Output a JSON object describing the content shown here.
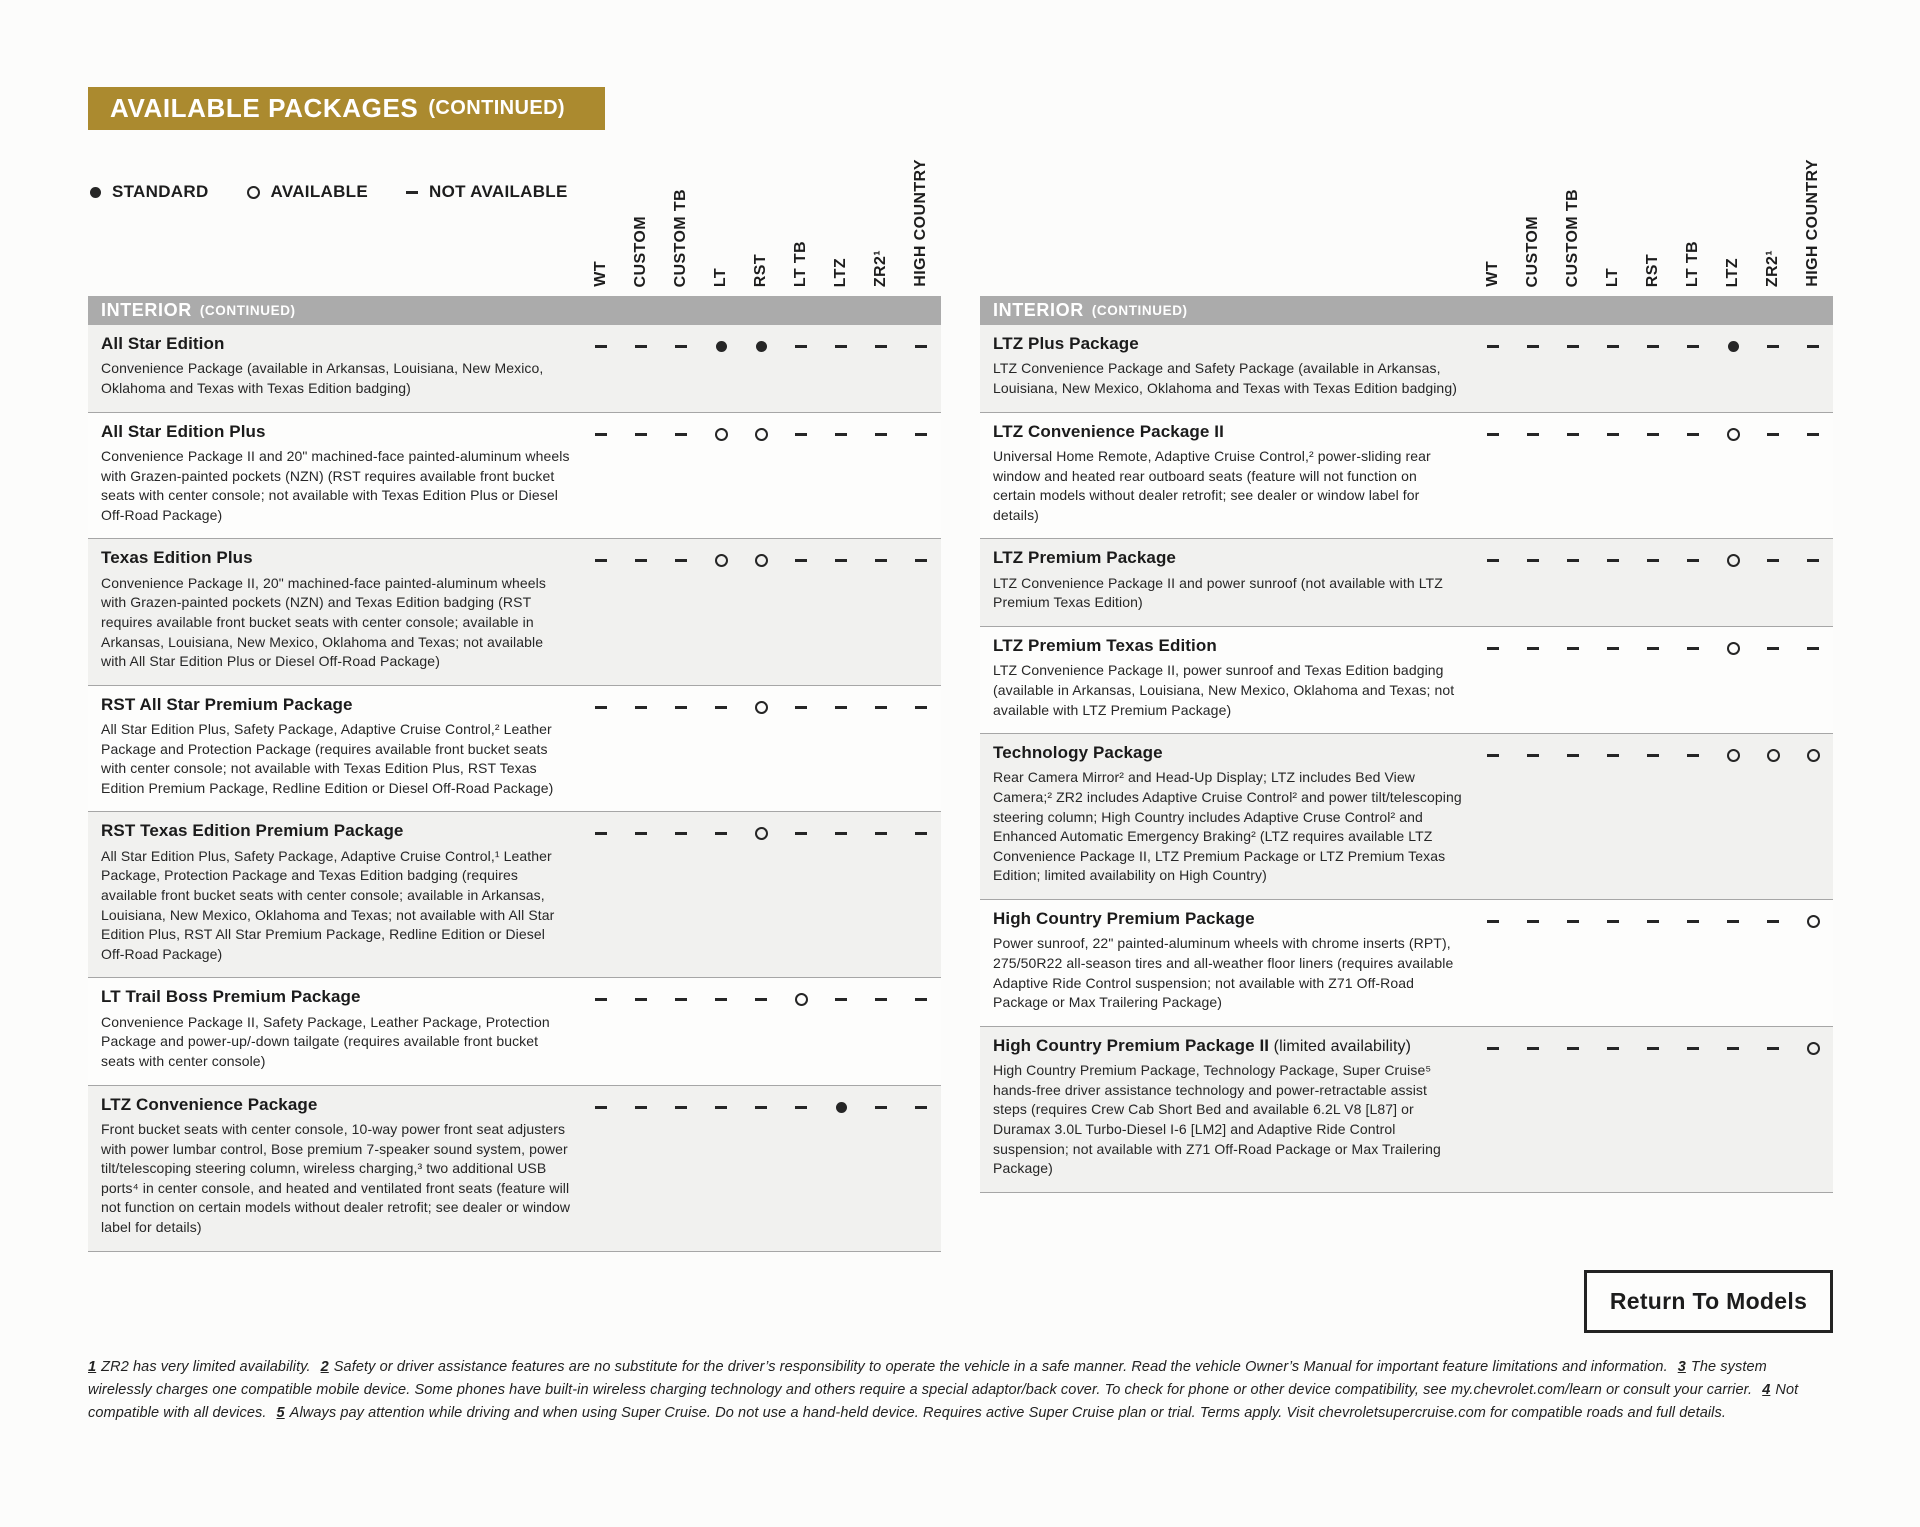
{
  "colors": {
    "accent": "#ab8a2f",
    "section_bar": "#ababab",
    "row_stripe": "#f1f1ef",
    "ink": "#262626"
  },
  "header": {
    "title": "AVAILABLE PACKAGES",
    "continued": "(CONTINUED)"
  },
  "legend": {
    "standard": "STANDARD",
    "available": "AVAILABLE",
    "not_available": "NOT AVAILABLE"
  },
  "columns": [
    "WT",
    "CUSTOM",
    "CUSTOM TB",
    "LT",
    "RST",
    "LT TB",
    "LTZ",
    "ZR2¹",
    "HIGH COUNTRY"
  ],
  "section": {
    "label": "INTERIOR",
    "suffix": "(CONTINUED)"
  },
  "symbol_key": {
    "std": "standard",
    "avl": "available",
    "na": "not available"
  },
  "tables": {
    "left": {
      "rows": [
        {
          "name": "All Star Edition",
          "desc": "Convenience Package (available in Arkansas, Louisiana, New Mexico, Oklahoma and Texas with Texas Edition badging)",
          "cells": [
            "na",
            "na",
            "na",
            "std",
            "std",
            "na",
            "na",
            "na",
            "na"
          ]
        },
        {
          "name": "All Star Edition Plus",
          "desc": "Convenience Package II and 20\" machined-face painted-aluminum wheels with Grazen-painted pockets (NZN) (RST requires available front bucket seats with center console; not available with Texas Edition Plus or Diesel Off-Road Package)",
          "cells": [
            "na",
            "na",
            "na",
            "avl",
            "avl",
            "na",
            "na",
            "na",
            "na"
          ]
        },
        {
          "name": "Texas Edition Plus",
          "desc": "Convenience Package II, 20\" machined-face painted-aluminum wheels with Grazen-painted pockets (NZN) and Texas Edition badging (RST requires available front bucket seats with center console; available in Arkansas, Louisiana, New Mexico, Oklahoma and Texas; not available with All Star Edition Plus or Diesel Off-Road Package)",
          "cells": [
            "na",
            "na",
            "na",
            "avl",
            "avl",
            "na",
            "na",
            "na",
            "na"
          ]
        },
        {
          "name": "RST All Star Premium Package",
          "desc": "All Star Edition Plus, Safety Package, Adaptive Cruise Control,² Leather Package and Protection Package (requires available front bucket seats with center console; not available with Texas Edition Plus, RST Texas Edition Premium Package, Redline Edition or Diesel Off-Road Package)",
          "cells": [
            "na",
            "na",
            "na",
            "na",
            "avl",
            "na",
            "na",
            "na",
            "na"
          ]
        },
        {
          "name": "RST Texas Edition Premium Package",
          "desc": "All Star Edition Plus, Safety Package, Adaptive Cruise Control,¹ Leather Package, Protection Package and Texas Edition badging (requires available front bucket seats with center console; available in Arkansas, Louisiana, New Mexico, Oklahoma and Texas; not available with All Star Edition Plus, RST All Star Premium Package, Redline Edition or Diesel Off-Road Package)",
          "cells": [
            "na",
            "na",
            "na",
            "na",
            "avl",
            "na",
            "na",
            "na",
            "na"
          ]
        },
        {
          "name": "LT Trail Boss Premium Package",
          "desc": "Convenience Package II, Safety Package, Leather Package, Protection Package and power-up/-down tailgate (requires available front bucket seats with center console)",
          "cells": [
            "na",
            "na",
            "na",
            "na",
            "na",
            "avl",
            "na",
            "na",
            "na"
          ]
        },
        {
          "name": "LTZ Convenience Package",
          "desc": "Front bucket seats with center console, 10-way power front seat adjusters with power lumbar control, Bose premium 7-speaker sound system, power tilt/telescoping steering column, wireless charging,³ two additional USB ports⁴ in center console, and heated and ventilated front seats (feature will not function on certain models without dealer retrofit; see dealer or window label for details)",
          "cells": [
            "na",
            "na",
            "na",
            "na",
            "na",
            "na",
            "std",
            "na",
            "na"
          ]
        }
      ]
    },
    "right": {
      "rows": [
        {
          "name": "LTZ Plus Package",
          "desc": "LTZ Convenience Package and Safety Package (available in Arkansas, Louisiana, New Mexico, Oklahoma and Texas with Texas Edition badging)",
          "cells": [
            "na",
            "na",
            "na",
            "na",
            "na",
            "na",
            "std",
            "na",
            "na"
          ]
        },
        {
          "name": "LTZ Convenience Package II",
          "desc": "Universal Home Remote, Adaptive Cruise Control,² power-sliding rear window and heated rear outboard seats (feature will not function on certain models without dealer retrofit; see dealer or window label for details)",
          "cells": [
            "na",
            "na",
            "na",
            "na",
            "na",
            "na",
            "avl",
            "na",
            "na"
          ]
        },
        {
          "name": "LTZ Premium Package",
          "desc": "LTZ Convenience Package II and power sunroof (not available with LTZ Premium Texas Edition)",
          "cells": [
            "na",
            "na",
            "na",
            "na",
            "na",
            "na",
            "avl",
            "na",
            "na"
          ]
        },
        {
          "name": "LTZ Premium Texas Edition",
          "desc": "LTZ Convenience Package II, power sunroof and Texas Edition badging (available in Arkansas, Louisiana, New Mexico, Oklahoma and Texas; not available with LTZ Premium Package)",
          "cells": [
            "na",
            "na",
            "na",
            "na",
            "na",
            "na",
            "avl",
            "na",
            "na"
          ]
        },
        {
          "name": "Technology Package",
          "desc": "Rear Camera Mirror² and Head-Up Display; LTZ includes Bed View Camera;² ZR2 includes Adaptive Cruise Control² and power tilt/telescoping steering column; High Country includes Adaptive Cruse Control² and Enhanced Automatic Emergency Braking² (LTZ requires available LTZ Convenience Package II, LTZ Premium Package or LTZ Premium Texas Edition; limited availability on High Country)",
          "cells": [
            "na",
            "na",
            "na",
            "na",
            "na",
            "na",
            "avl",
            "avl",
            "avl"
          ]
        },
        {
          "name": "High Country Premium Package",
          "desc": "Power sunroof, 22\" painted-aluminum wheels with chrome inserts (RPT), 275/50R22 all-season tires and all-weather floor liners (requires available Adaptive Ride Control suspension; not available with Z71 Off-Road Package or Max Trailering Package)",
          "cells": [
            "na",
            "na",
            "na",
            "na",
            "na",
            "na",
            "na",
            "na",
            "avl"
          ]
        },
        {
          "name": "High Country Premium Package II",
          "note": "(limited availability)",
          "desc": "High Country Premium Package, Technology Package, Super Cruise⁵ hands-free driver assistance technology and power-retractable assist steps (requires Crew Cab Short Bed and available 6.2L V8 [L87] or Duramax 3.0L Turbo-Diesel I-6 [LM2] and Adaptive Ride Control suspension; not available with Z71 Off-Road Package or Max Trailering Package)",
          "cells": [
            "na",
            "na",
            "na",
            "na",
            "na",
            "na",
            "na",
            "na",
            "avl"
          ]
        }
      ]
    }
  },
  "footnotes": [
    {
      "num": "1",
      "text": "ZR2 has very limited availability."
    },
    {
      "num": "2",
      "text": "Safety or driver assistance features are no substitute for the driver’s responsibility to operate the vehicle in a safe manner. Read the vehicle Owner’s Manual for important feature limitations and information."
    },
    {
      "num": "3",
      "text": "The system wirelessly charges one compatible mobile device. Some phones have built-in wireless charging technology and others require a special adaptor/back cover. To check for phone or other device compatibility, see my.chevrolet.com/learn or consult your carrier."
    },
    {
      "num": "4",
      "text": "Not compatible with all devices."
    },
    {
      "num": "5",
      "text": "Always pay attention while driving and when using Super Cruise. Do not use a hand-held device. Requires active Super Cruise plan or trial. Terms apply. Visit chevroletsupercruise.com for compatible roads and full details."
    }
  ],
  "button": {
    "label": "Return To Models"
  }
}
